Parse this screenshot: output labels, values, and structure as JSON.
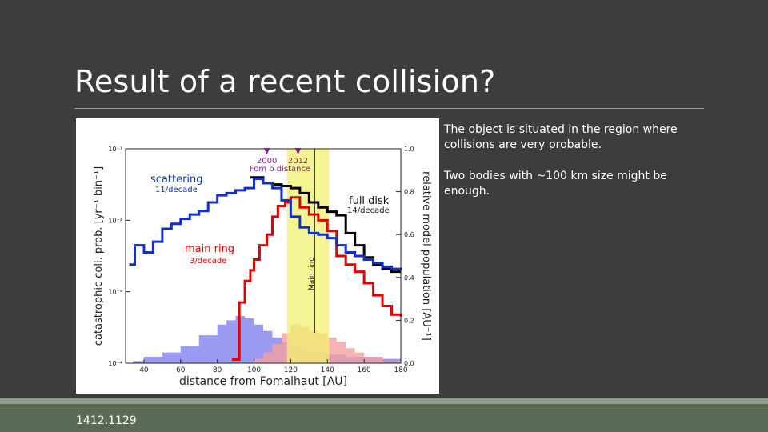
{
  "slide": {
    "title": "Result of a recent collision?",
    "bullets": [
      "The object is situated in the region where collisions are very probable.",
      "Two bodies with ~100 km size might be enough."
    ],
    "reference": "1412.1129"
  },
  "colors": {
    "background": "#3d3d3d",
    "footer_bar": "#8c9d8a",
    "footer_band": "#5a6a57",
    "full_disk": "#000000",
    "main_ring": "#e00000",
    "scattering": "#1030c8",
    "fill_blue": "#8f8ff0",
    "fill_pink": "#f4a0a0",
    "band": "#f0f070",
    "markers": "#8a2090"
  },
  "chart_data": {
    "type": "line",
    "xlabel": "distance from Fomalhaut [AU]",
    "ylabel_left": "catastrophic coll. prob. [yr⁻¹ bin⁻¹]",
    "ylabel_right": "relative model population [AU⁻¹]",
    "xlim": [
      30,
      180
    ],
    "ylim_left_log": [
      -4,
      -1
    ],
    "ylim_right": [
      0,
      1.0
    ],
    "x_ticks": [
      "40",
      "60",
      "80",
      "100",
      "120",
      "140",
      "160",
      "180"
    ],
    "y_ticks_left": [
      "10⁻¹",
      "10⁻²",
      "10⁻³",
      "10⁻⁴"
    ],
    "y_ticks_right": [
      "1.0",
      "0.8",
      "0.6",
      "0.4",
      "0.2",
      "0.0"
    ],
    "main_ring_band": [
      118,
      141
    ],
    "main_ring_center": 133,
    "band_label": "Main ring",
    "epochs": [
      {
        "year": "2000",
        "x": 107
      },
      {
        "year": "2012",
        "x": 124
      }
    ],
    "epoch_caption": "Fom b distance",
    "series": [
      {
        "name": "full disk",
        "rate": "14/decade",
        "x": [
          98,
          105,
          110,
          115,
          120,
          125,
          130,
          135,
          140,
          145,
          150,
          155,
          160,
          165,
          170,
          175,
          180
        ],
        "y_log": [
          -1.4,
          -1.48,
          -1.5,
          -1.52,
          -1.55,
          -1.62,
          -1.75,
          -1.82,
          -1.88,
          -1.93,
          -2.18,
          -2.35,
          -2.52,
          -2.62,
          -2.68,
          -2.72,
          -2.72
        ]
      },
      {
        "name": "main ring",
        "rate": "3/decade",
        "x": [
          88,
          92,
          95,
          98,
          100,
          103,
          107,
          110,
          113,
          117,
          120,
          125,
          130,
          135,
          140,
          145,
          150,
          155,
          160,
          165,
          170,
          175,
          180
        ],
        "y_log": [
          -3.95,
          -3.15,
          -2.85,
          -2.7,
          -2.55,
          -2.35,
          -2.2,
          -1.95,
          -1.8,
          -1.75,
          -1.68,
          -1.82,
          -1.92,
          -2.0,
          -2.15,
          -2.5,
          -2.62,
          -2.72,
          -2.88,
          -3.05,
          -3.2,
          -3.32,
          -3.35
        ]
      },
      {
        "name": "scattering",
        "rate": "11/decade",
        "x": [
          32,
          35,
          40,
          45,
          50,
          55,
          60,
          65,
          70,
          75,
          80,
          85,
          90,
          95,
          100,
          105,
          110,
          115,
          120,
          125,
          130,
          135,
          140,
          145,
          150,
          155,
          160,
          165,
          170,
          175,
          180
        ],
        "y_log": [
          -2.62,
          -2.35,
          -2.45,
          -2.3,
          -2.12,
          -2.05,
          -1.98,
          -1.92,
          -1.87,
          -1.75,
          -1.65,
          -1.62,
          -1.58,
          -1.55,
          -1.42,
          -1.48,
          -1.55,
          -1.72,
          -1.95,
          -2.1,
          -2.18,
          -2.2,
          -2.25,
          -2.35,
          -2.45,
          -2.5,
          -2.55,
          -2.6,
          -2.65,
          -2.68,
          -2.7
        ]
      }
    ],
    "population": [
      {
        "name": "scattering population",
        "x": [
          34,
          40,
          50,
          60,
          70,
          80,
          85,
          90,
          95,
          100,
          105,
          110,
          115,
          120,
          125,
          130,
          140,
          150,
          160,
          170,
          180
        ],
        "y": [
          0.01,
          0.03,
          0.05,
          0.08,
          0.13,
          0.18,
          0.2,
          0.22,
          0.21,
          0.18,
          0.15,
          0.12,
          0.1,
          0.08,
          0.06,
          0.05,
          0.04,
          0.03,
          0.03,
          0.02,
          0.02
        ]
      },
      {
        "name": "main ring population",
        "x": [
          90,
          100,
          105,
          110,
          115,
          120,
          125,
          130,
          135,
          140,
          145,
          150,
          155,
          160,
          170,
          180
        ],
        "y": [
          0.0,
          0.02,
          0.05,
          0.09,
          0.14,
          0.18,
          0.17,
          0.15,
          0.14,
          0.12,
          0.1,
          0.07,
          0.05,
          0.03,
          0.01,
          0.0
        ]
      }
    ]
  }
}
